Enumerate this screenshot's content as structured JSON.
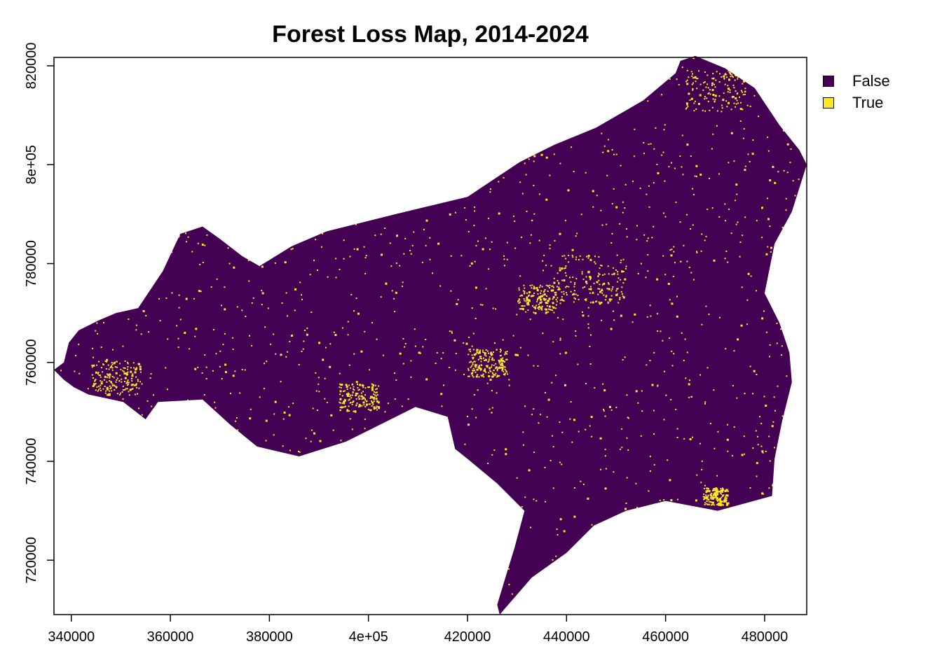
{
  "chart_data": {
    "type": "raster-map",
    "title": "Forest Loss Map, 2014-2024",
    "xlabel": "",
    "ylabel": "",
    "xlim": [
      336500,
      488500
    ],
    "ylim": [
      709000,
      821700
    ],
    "x_ticks": [
      {
        "value": 340000,
        "label": "340000"
      },
      {
        "value": 360000,
        "label": "360000"
      },
      {
        "value": 380000,
        "label": "380000"
      },
      {
        "value": 400000,
        "label": "4e+05"
      },
      {
        "value": 420000,
        "label": "420000"
      },
      {
        "value": 440000,
        "label": "440000"
      },
      {
        "value": 460000,
        "label": "460000"
      },
      {
        "value": 480000,
        "label": "480000"
      }
    ],
    "y_ticks": [
      {
        "value": 720000,
        "label": "720000"
      },
      {
        "value": 740000,
        "label": "740000"
      },
      {
        "value": 760000,
        "label": "760000"
      },
      {
        "value": 780000,
        "label": "780000"
      },
      {
        "value": 800000,
        "label": "8e+05"
      },
      {
        "value": 820000,
        "label": "820000"
      }
    ],
    "legend": {
      "placement": "top-right",
      "entries": [
        {
          "label": "False",
          "color": "#440154"
        },
        {
          "label": "True",
          "color": "#FDE725"
        }
      ]
    },
    "region_outline": [
      [
        336500,
        758500
      ],
      [
        338500,
        760000
      ],
      [
        339500,
        764000
      ],
      [
        341500,
        766500
      ],
      [
        345500,
        768500
      ],
      [
        349000,
        770000
      ],
      [
        353500,
        771000
      ],
      [
        358500,
        778500
      ],
      [
        362000,
        786000
      ],
      [
        366500,
        787500
      ],
      [
        370000,
        785000
      ],
      [
        374500,
        781500
      ],
      [
        378000,
        779500
      ],
      [
        384500,
        783500
      ],
      [
        391500,
        786500
      ],
      [
        399500,
        788500
      ],
      [
        405500,
        790000
      ],
      [
        420000,
        793500
      ],
      [
        424500,
        796500
      ],
      [
        430500,
        800500
      ],
      [
        437500,
        804000
      ],
      [
        446000,
        807500
      ],
      [
        455500,
        813000
      ],
      [
        462000,
        818500
      ],
      [
        463000,
        821000
      ],
      [
        466000,
        822000
      ],
      [
        472000,
        819500
      ],
      [
        478000,
        815500
      ],
      [
        483000,
        808000
      ],
      [
        487000,
        803000
      ],
      [
        488500,
        800000
      ],
      [
        485500,
        790500
      ],
      [
        482000,
        784000
      ],
      [
        480000,
        774000
      ],
      [
        483000,
        768000
      ],
      [
        485000,
        762000
      ],
      [
        485500,
        756000
      ],
      [
        483500,
        748000
      ],
      [
        482000,
        740500
      ],
      [
        481500,
        733000
      ],
      [
        476000,
        731500
      ],
      [
        470500,
        730000
      ],
      [
        460000,
        732000
      ],
      [
        452000,
        730000
      ],
      [
        445500,
        727000
      ],
      [
        440000,
        721500
      ],
      [
        433000,
        716500
      ],
      [
        426500,
        709000
      ],
      [
        426000,
        711000
      ],
      [
        427500,
        716000
      ],
      [
        429500,
        722500
      ],
      [
        431500,
        730000
      ],
      [
        426000,
        735500
      ],
      [
        420000,
        740500
      ],
      [
        417500,
        742500
      ],
      [
        416000,
        749000
      ],
      [
        409500,
        751000
      ],
      [
        402500,
        747500
      ],
      [
        395500,
        744000
      ],
      [
        386000,
        741000
      ],
      [
        377500,
        743000
      ],
      [
        372000,
        747500
      ],
      [
        366500,
        752500
      ],
      [
        357500,
        752000
      ],
      [
        355000,
        748500
      ],
      [
        350500,
        752000
      ],
      [
        343500,
        753500
      ],
      [
        340500,
        755000
      ],
      [
        338500,
        756500
      ],
      [
        336500,
        758500
      ]
    ],
    "values": {
      "False": "background class (non-loss forest)",
      "True": "scattered loss pixels"
    }
  }
}
